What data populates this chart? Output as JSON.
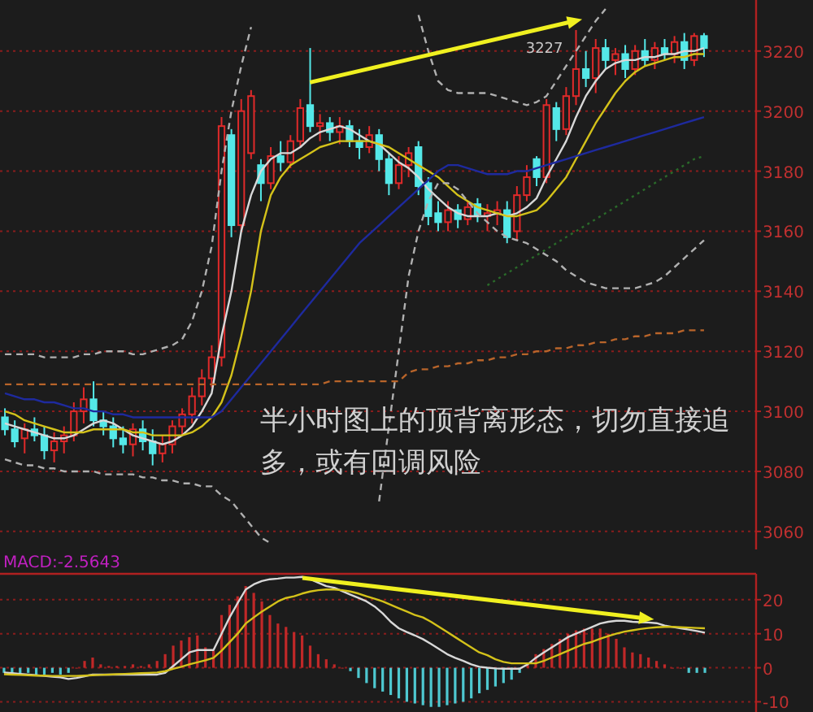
{
  "chart_data": [
    {
      "type": "candlestick",
      "categories": [
        null,
        null,
        null,
        null,
        null,
        null,
        null,
        null,
        null,
        null,
        null,
        null,
        null,
        null,
        null,
        null,
        null,
        null,
        null,
        null,
        null,
        null,
        null,
        null,
        null,
        null,
        null,
        null,
        null,
        null,
        null,
        null,
        null,
        null,
        null,
        null,
        null,
        null,
        null,
        null,
        null,
        null,
        null,
        null,
        null,
        null,
        null,
        null,
        null,
        null,
        null,
        null,
        null,
        null,
        null,
        null,
        null,
        null,
        null,
        null,
        null,
        null,
        null,
        null,
        null,
        null,
        null,
        null,
        null,
        null,
        null,
        null
      ],
      "ohlc": [
        [
          3098,
          3101,
          3092,
          3094
        ],
        [
          3094,
          3097,
          3088,
          3090
        ],
        [
          3091,
          3096,
          3086,
          3094
        ],
        [
          3094,
          3098,
          3090,
          3092
        ],
        [
          3092,
          3095,
          3084,
          3087
        ],
        [
          3087,
          3093,
          3083,
          3090
        ],
        [
          3090,
          3095,
          3086,
          3092
        ],
        [
          3092,
          3103,
          3090,
          3100
        ],
        [
          3100,
          3108,
          3096,
          3104
        ],
        [
          3104,
          3110,
          3095,
          3097
        ],
        [
          3097,
          3100,
          3092,
          3095
        ],
        [
          3095,
          3098,
          3088,
          3091
        ],
        [
          3091,
          3095,
          3086,
          3089
        ],
        [
          3089,
          3096,
          3085,
          3094
        ],
        [
          3094,
          3097,
          3087,
          3090
        ],
        [
          3090,
          3094,
          3082,
          3086
        ],
        [
          3086,
          3092,
          3083,
          3089
        ],
        [
          3089,
          3097,
          3086,
          3095
        ],
        [
          3095,
          3101,
          3092,
          3099
        ],
        [
          3099,
          3108,
          3096,
          3105
        ],
        [
          3105,
          3114,
          3102,
          3111
        ],
        [
          3111,
          3122,
          3108,
          3118
        ],
        [
          3118,
          3198,
          3115,
          3195
        ],
        [
          3192,
          3194,
          3158,
          3162
        ],
        [
          3162,
          3204,
          3160,
          3200
        ],
        [
          3186,
          3207,
          3184,
          3205
        ],
        [
          3182,
          3184,
          3170,
          3176
        ],
        [
          3176,
          3188,
          3174,
          3185
        ],
        [
          3185,
          3190,
          3180,
          3183
        ],
        [
          3183,
          3192,
          3181,
          3190
        ],
        [
          3190,
          3204,
          3188,
          3201
        ],
        [
          3202,
          3221,
          3193,
          3195
        ],
        [
          3195,
          3199,
          3190,
          3196
        ],
        [
          3196,
          3198,
          3190,
          3193
        ],
        [
          3193,
          3198,
          3189,
          3195
        ],
        [
          3195,
          3197,
          3188,
          3190
        ],
        [
          3190,
          3194,
          3184,
          3188
        ],
        [
          3188,
          3195,
          3186,
          3192
        ],
        [
          3192,
          3194,
          3180,
          3184
        ],
        [
          3184,
          3186,
          3172,
          3176
        ],
        [
          3176,
          3185,
          3174,
          3182
        ],
        [
          3182,
          3188,
          3178,
          3186
        ],
        [
          3188,
          3190,
          3172,
          3175
        ],
        [
          3176,
          3178,
          3162,
          3165
        ],
        [
          3166,
          3170,
          3160,
          3163
        ],
        [
          3163,
          3170,
          3160,
          3167
        ],
        [
          3167,
          3169,
          3161,
          3164
        ],
        [
          3164,
          3170,
          3162,
          3168
        ],
        [
          3169,
          3171,
          3163,
          3165
        ],
        [
          3165,
          3169,
          3160,
          3166
        ],
        [
          3166,
          3170,
          3162,
          3167
        ],
        [
          3167,
          3170,
          3156,
          3158
        ],
        [
          3160,
          3175,
          3157,
          3172
        ],
        [
          3172,
          3182,
          3170,
          3178
        ],
        [
          3184,
          3185,
          3175,
          3178
        ],
        [
          3178,
          3204,
          3176,
          3202
        ],
        [
          3201,
          3203,
          3190,
          3194
        ],
        [
          3194,
          3208,
          3192,
          3205
        ],
        [
          3205,
          3227,
          3202,
          3214
        ],
        [
          3214,
          3220,
          3208,
          3211
        ],
        [
          3211,
          3224,
          3206,
          3221
        ],
        [
          3221,
          3224,
          3214,
          3217
        ],
        [
          3217,
          3221,
          3212,
          3219
        ],
        [
          3219,
          3222,
          3211,
          3214
        ],
        [
          3214,
          3222,
          3212,
          3220
        ],
        [
          3220,
          3224,
          3215,
          3217
        ],
        [
          3217,
          3223,
          3214,
          3221
        ],
        [
          3221,
          3224,
          3217,
          3219
        ],
        [
          3219,
          3225,
          3216,
          3223
        ],
        [
          3223,
          3226,
          3214,
          3217
        ],
        [
          3217,
          3226,
          3215,
          3225
        ],
        [
          3225,
          3226,
          3218,
          3221
        ]
      ],
      "series": [
        {
          "type": "line",
          "color": "#d8d8d8",
          "line_style": "solid",
          "values": [
            3096,
            3095,
            3094,
            3093,
            3092,
            3091,
            3091,
            3092,
            3094,
            3096,
            3097,
            3096,
            3094,
            3092,
            3091,
            3090,
            3089,
            3090,
            3092,
            3095,
            3100,
            3106,
            3125,
            3140,
            3160,
            3172,
            3180,
            3184,
            3186,
            3186,
            3188,
            3191,
            3193,
            3194,
            3195,
            3194,
            3192,
            3190,
            3189,
            3186,
            3183,
            3181,
            3178,
            3174,
            3171,
            3168,
            3166,
            3165,
            3165,
            3165,
            3166,
            3165,
            3166,
            3168,
            3171,
            3178,
            3184,
            3190,
            3198,
            3205,
            3210,
            3214,
            3216,
            3217,
            3217,
            3218,
            3218,
            3219,
            3219,
            3220,
            3220,
            3221
          ]
        },
        {
          "type": "line",
          "color": "#d4c21a",
          "line_style": "solid",
          "values": [
            3100,
            3099,
            3097,
            3096,
            3095,
            3094,
            3093,
            3093,
            3093,
            3094,
            3094,
            3094,
            3094,
            3093,
            3093,
            3092,
            3092,
            3092,
            3092,
            3093,
            3095,
            3098,
            3103,
            3112,
            3125,
            3140,
            3160,
            3172,
            3178,
            3182,
            3184,
            3186,
            3188,
            3189,
            3190,
            3190,
            3190,
            3190,
            3189,
            3188,
            3186,
            3184,
            3182,
            3180,
            3178,
            3175,
            3172,
            3170,
            3168,
            3167,
            3166,
            3165,
            3165,
            3166,
            3167,
            3170,
            3174,
            3178,
            3184,
            3190,
            3196,
            3201,
            3206,
            3210,
            3213,
            3215,
            3216,
            3217,
            3218,
            3218,
            3219,
            3219
          ]
        },
        {
          "type": "line",
          "color": "#1e2a9e",
          "line_style": "solid",
          "values": [
            3106,
            3105,
            3104,
            3104,
            3103,
            3103,
            3102,
            3101,
            3101,
            3100,
            3100,
            3099,
            3099,
            3098,
            3098,
            3098,
            3098,
            3098,
            3098,
            3098,
            3098,
            3098,
            3100,
            3104,
            3108,
            3112,
            3116,
            3120,
            3124,
            3128,
            3132,
            3136,
            3140,
            3144,
            3148,
            3152,
            3156,
            3159,
            3162,
            3165,
            3168,
            3171,
            3174,
            3177,
            3180,
            3182,
            3182,
            3181,
            3180,
            3179,
            3179,
            3179,
            3180,
            3180,
            3181,
            3182,
            3183,
            3184,
            3185,
            3186,
            3187,
            3188,
            3189,
            3190,
            3191,
            3192,
            3193,
            3194,
            3195,
            3196,
            3197,
            3198
          ]
        },
        {
          "type": "line",
          "color": "#b0b0b0",
          "line_style": "dashed",
          "values": [
            3119,
            3119,
            3119,
            3119,
            3118,
            3118,
            3118,
            3118,
            3119,
            3119,
            3120,
            3120,
            3120,
            3119,
            3119,
            3120,
            3121,
            3122,
            3124,
            3130,
            3140,
            3155,
            3180,
            3200,
            3215,
            3228,
            null,
            null,
            null,
            null,
            null,
            null,
            null,
            null,
            null,
            null,
            null,
            null,
            null,
            null,
            null,
            null,
            3232,
            3220,
            3210,
            3207,
            3206,
            3206,
            3206,
            3206,
            3205,
            3204,
            3203,
            3202,
            3203,
            3205,
            3210,
            3215,
            3220,
            3225,
            3230,
            3234,
            null,
            null,
            null,
            null,
            null,
            null,
            null,
            null,
            null,
            null
          ]
        },
        {
          "type": "line",
          "color": "#b0b0b0",
          "line_style": "dashed",
          "values": [
            3084,
            3083,
            3082,
            3082,
            3081,
            3081,
            3080,
            3080,
            3080,
            3080,
            3079,
            3079,
            3079,
            3079,
            3078,
            3078,
            3077,
            3077,
            3076,
            3076,
            3075,
            3075,
            3072,
            3070,
            3066,
            3062,
            3058,
            3056,
            null,
            null,
            null,
            null,
            null,
            null,
            null,
            null,
            null,
            null,
            3070,
            3095,
            3120,
            3145,
            3160,
            3170,
            3176,
            3176,
            3174,
            3170,
            3166,
            3163,
            3160,
            3158,
            3157,
            3156,
            3154,
            3152,
            3150,
            3147,
            3145,
            3143,
            3142,
            3141,
            3141,
            3141,
            3141,
            3142,
            3143,
            3145,
            3148,
            3151,
            3154,
            3157
          ]
        },
        {
          "type": "line",
          "color": "#b8642a",
          "line_style": "dashed",
          "values": [
            3109,
            3109,
            3109,
            3109,
            3109,
            3109,
            3109,
            3109,
            3109,
            3109,
            3109,
            3109,
            3109,
            3109,
            3109,
            3109,
            3109,
            3109,
            3109,
            3109,
            3109,
            3109,
            3109,
            3109,
            3109,
            3109,
            3109,
            3109,
            3109,
            3109,
            3109,
            3109,
            3109,
            3110,
            3110,
            3110,
            3110,
            3110,
            3110,
            3110,
            3110,
            3113,
            3114,
            3114,
            3115,
            3115,
            3116,
            3116,
            3117,
            3117,
            3118,
            3118,
            3119,
            3119,
            3120,
            3120,
            3121,
            3121,
            3122,
            3122,
            3123,
            3123,
            3124,
            3124,
            3125,
            3125,
            3126,
            3126,
            3126,
            3127,
            3127,
            3127
          ]
        },
        {
          "type": "line",
          "color": "#2a6a2a",
          "line_style": "dotted",
          "values": [
            null,
            null,
            null,
            null,
            null,
            null,
            null,
            null,
            null,
            null,
            null,
            null,
            null,
            null,
            null,
            null,
            null,
            null,
            null,
            null,
            null,
            null,
            null,
            null,
            null,
            null,
            null,
            null,
            null,
            null,
            null,
            null,
            null,
            null,
            null,
            null,
            null,
            null,
            null,
            null,
            null,
            null,
            null,
            null,
            null,
            null,
            null,
            null,
            null,
            3142,
            3144,
            3146,
            3148,
            3150,
            3152,
            3154,
            3156,
            3158,
            3160,
            3162,
            3164,
            3166,
            3168,
            3170,
            3172,
            3174,
            3176,
            3178,
            3180,
            3182,
            3184,
            3185
          ]
        }
      ],
      "ylim": [
        3054,
        3237
      ],
      "yticks": [
        3060,
        3080,
        3100,
        3120,
        3140,
        3160,
        3180,
        3200,
        3220
      ],
      "grid": "y",
      "tick_labels": "y",
      "annotations": [
        "3227",
        "半小时图上的顶背离形态，切勿直接追多，或有回调风险"
      ]
    },
    {
      "type": "bar",
      "title": "MACD:-2.5643",
      "categories": [
        null,
        null,
        null,
        null,
        null,
        null,
        null,
        null,
        null,
        null,
        null,
        null,
        null,
        null,
        null,
        null,
        null,
        null,
        null,
        null,
        null,
        null,
        null,
        null,
        null,
        null,
        null,
        null,
        null,
        null,
        null,
        null,
        null,
        null,
        null,
        null,
        null,
        null,
        null,
        null,
        null,
        null,
        null,
        null,
        null,
        null,
        null,
        null,
        null,
        null,
        null,
        null,
        null,
        null,
        null,
        null,
        null,
        null,
        null,
        null,
        null,
        null,
        null,
        null,
        null,
        null,
        null,
        null,
        null,
        null,
        null,
        null,
        null,
        null,
        null,
        null,
        null,
        null,
        null,
        null,
        null,
        null,
        null,
        null,
        null,
        null,
        null,
        null
      ],
      "series": [
        {
          "type": "bar",
          "colors": [
            "#4ec8d0",
            "#4ec8d0",
            "#4ec8d0",
            "#4ec8d0",
            "#4ec8d0",
            "#4ec8d0",
            "#4ec8d0",
            "#4ec8d0",
            "#4ec8d0",
            "#c02828",
            "#c02828",
            "#c02828",
            "#c02828",
            "#c02828",
            "#c02828",
            "#c02828",
            "#c02828",
            "#c02828",
            "#c02828",
            "#c02828",
            "#c02828",
            "#c02828",
            "#c02828",
            "#c02828",
            "#c02828",
            "#c02828",
            "#c02828",
            "#c02828",
            "#c02828",
            "#c02828",
            "#c02828",
            "#c02828",
            "#c02828",
            "#c02828",
            "#c02828",
            "#c02828",
            "#c02828",
            "#c02828",
            "#c02828",
            "#c02828",
            "#c02828",
            "#c02828",
            "#c02828",
            "#4ec8d0",
            "#4ec8d0",
            "#4ec8d0",
            "#4ec8d0",
            "#4ec8d0",
            "#4ec8d0",
            "#4ec8d0",
            "#4ec8d0",
            "#4ec8d0",
            "#4ec8d0",
            "#4ec8d0",
            "#4ec8d0",
            "#4ec8d0",
            "#4ec8d0",
            "#4ec8d0",
            "#4ec8d0",
            "#4ec8d0",
            "#4ec8d0",
            "#4ec8d0",
            "#4ec8d0",
            "#4ec8d0",
            "#4ec8d0",
            "#c02828",
            "#c02828",
            "#c02828",
            "#c02828",
            "#c02828",
            "#c02828",
            "#c02828",
            "#c02828",
            "#c02828",
            "#c02828",
            "#c02828",
            "#c02828",
            "#c02828",
            "#c02828",
            "#c02828",
            "#c02828",
            "#c02828",
            "#c02828",
            "#c02828",
            "#c02828",
            "#4ec8d0",
            "#4ec8d0",
            "#4ec8d0"
          ],
          "values": [
            -1.5,
            -1.5,
            -2,
            -1.5,
            -2,
            -2,
            -1.5,
            -2,
            -1.5,
            0,
            2,
            3,
            1,
            0.5,
            0.5,
            0.5,
            1,
            0.5,
            1,
            2,
            4,
            6.5,
            8,
            9,
            9.5,
            6,
            5,
            15.5,
            18.5,
            21,
            24,
            22,
            19.5,
            15.5,
            13,
            12,
            10.5,
            9.5,
            6.5,
            4,
            2.5,
            1,
            0,
            -1,
            -3,
            -4.5,
            -6,
            -7,
            -8,
            -9,
            -10,
            -10.5,
            -11,
            -11.5,
            -11.5,
            -11,
            -10.5,
            -10,
            -9,
            -7.5,
            -6.5,
            -5.5,
            -4.5,
            -3.5,
            -1.5,
            1,
            4,
            5.5,
            7,
            8.5,
            10,
            11,
            11.5,
            11.5,
            11.5,
            10,
            8.5,
            6,
            4.5,
            4,
            3,
            2,
            1,
            0,
            0,
            -1.5,
            -1.5,
            -1.5
          ]
        },
        {
          "type": "line",
          "color": "#d8d8d8",
          "values": [
            -1.4,
            -1.6,
            -1.8,
            -2.0,
            -2.2,
            -2.4,
            -2.6,
            -2.8,
            -3.3,
            -3.0,
            -2.5,
            -2.0,
            -2.0,
            -2.0,
            -2.0,
            -2.0,
            -2.0,
            -2.0,
            -2.0,
            -2.0,
            -1.5,
            0.5,
            2.5,
            4.5,
            5.2,
            5.2,
            5.2,
            10,
            14.8,
            19,
            23,
            24.5,
            25.5,
            26,
            26.2,
            26.5,
            26.5,
            26.7,
            26,
            25,
            24,
            23.5,
            22.5,
            21.5,
            20.5,
            19.5,
            18,
            16,
            13.5,
            11.6,
            10.5,
            9.5,
            8.4,
            7,
            5.5,
            4,
            2.9,
            2,
            1,
            0.3,
            0,
            -0.2,
            -0.3,
            -0.3,
            -0.3,
            1,
            2.9,
            4.5,
            6,
            7.5,
            9,
            10,
            11,
            12,
            13,
            13.5,
            13.8,
            13.8,
            13.5,
            13.4,
            13.3,
            13.1,
            12.4,
            12,
            11.6,
            11.2,
            10.8,
            10.3
          ]
        },
        {
          "type": "line",
          "color": "#d4c21a",
          "values": [
            -1.9,
            -2.0,
            -2.1,
            -2.2,
            -2.3,
            -2.3,
            -2.4,
            -2.4,
            -2.4,
            -2.4,
            -2.3,
            -2.2,
            -2.1,
            -2.0,
            -1.9,
            -1.8,
            -1.7,
            -1.6,
            -1.5,
            -1.4,
            -1.0,
            -0.3,
            0.3,
            1,
            1.6,
            2.2,
            2.9,
            5,
            7.5,
            10,
            13,
            14.8,
            16.5,
            18,
            19.5,
            20.5,
            21,
            21.8,
            22.4,
            22.8,
            23,
            23,
            22.8,
            22.4,
            21.8,
            21,
            20.3,
            19.5,
            18.5,
            17.5,
            16.5,
            15.5,
            14.8,
            13.5,
            12,
            10.5,
            9,
            7.5,
            6,
            4.5,
            3.7,
            2.5,
            1.7,
            1.3,
            1.3,
            1.3,
            1.3,
            2,
            3,
            4,
            5,
            6,
            7,
            7.6,
            8.5,
            9.3,
            10,
            10.6,
            11,
            11.4,
            11.7,
            11.9,
            12,
            12,
            11.9,
            11.8,
            11.7,
            11.6
          ]
        }
      ],
      "ylim": [
        -13,
        27.6
      ],
      "yticks": [
        -10,
        0,
        10,
        20
      ],
      "grid": "y",
      "tick_labels": "y"
    }
  ]
}
